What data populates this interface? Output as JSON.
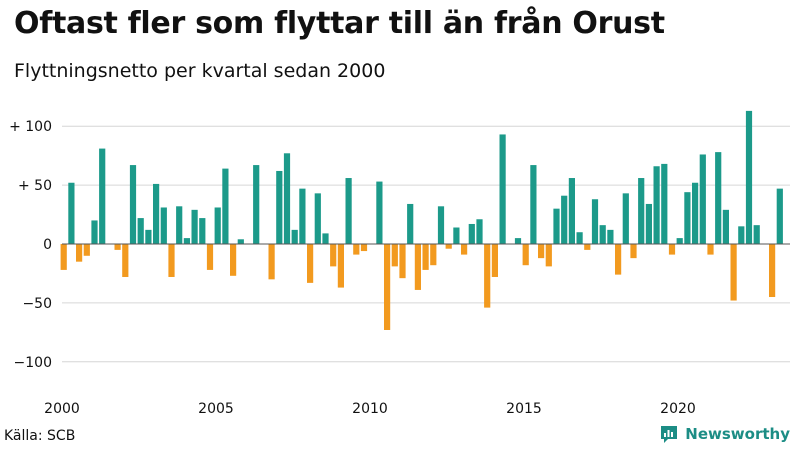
{
  "header": {
    "title": "Oftast fler som flyttar till än från Orust",
    "subtitle": "Flyttningsnetto per kvartal sedan 2000"
  },
  "footer": {
    "source": "Källa: SCB",
    "brand": "Newsworthy"
  },
  "colors": {
    "positive": "#1c9a8a",
    "negative": "#f29a1f",
    "grid": "#d6d6d6",
    "brand": "#1c8d85"
  },
  "chart_data": {
    "type": "bar",
    "title": "Oftast fler som flyttar till än från Orust",
    "subtitle": "Flyttningsnetto per kvartal sedan 2000",
    "xlabel": "",
    "ylabel": "",
    "ylim": [
      -110,
      115
    ],
    "y_ticks": [
      {
        "value": 100,
        "label": "+ 100"
      },
      {
        "value": 50,
        "label": "+ 50"
      },
      {
        "value": 0,
        "label": "0"
      },
      {
        "value": -50,
        "label": "−50"
      },
      {
        "value": -100,
        "label": "−100"
      }
    ],
    "x_ticks": [
      "2000",
      "2005",
      "2010",
      "2015",
      "2020"
    ],
    "grid": true,
    "legend": "none",
    "start_year": 2000,
    "values": [
      -22,
      52,
      -15,
      -10,
      20,
      81,
      0,
      -5,
      -28,
      67,
      22,
      12,
      51,
      31,
      -28,
      32,
      5,
      29,
      22,
      -22,
      31,
      64,
      -27,
      4,
      0,
      67,
      0,
      -30,
      62,
      77,
      12,
      47,
      -33,
      43,
      9,
      -19,
      -37,
      56,
      -9,
      -6,
      0,
      53,
      -73,
      -19,
      -29,
      34,
      -39,
      -22,
      -18,
      32,
      -4,
      14,
      -9,
      17,
      21,
      -54,
      -28,
      93,
      0,
      5,
      -18,
      67,
      -12,
      -19,
      30,
      41,
      56,
      10,
      -5,
      38,
      16,
      12,
      -26,
      43,
      -12,
      56,
      34,
      66,
      68,
      -9,
      5,
      44,
      52,
      76,
      -9,
      78,
      29,
      -48,
      15,
      113,
      16,
      0,
      -45,
      47
    ]
  }
}
